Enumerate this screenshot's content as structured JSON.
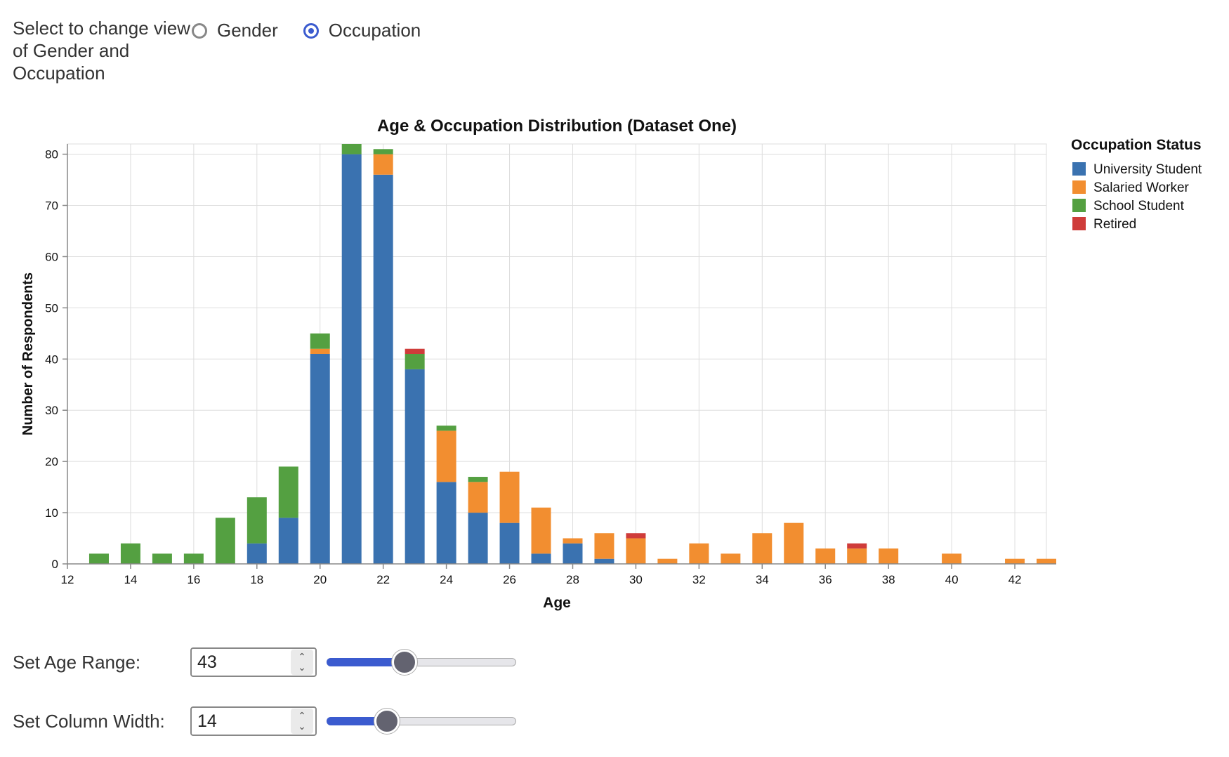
{
  "view_selector": {
    "label": "Select to change view of Gender and Occupation",
    "options": [
      {
        "label": "Gender",
        "selected": false
      },
      {
        "label": "Occupation",
        "selected": true
      }
    ]
  },
  "chart_data": {
    "type": "bar",
    "stacked": true,
    "title": "Age & Occupation Distribution (Dataset One)",
    "xlabel": "Age",
    "ylabel": "Number of Respondents",
    "xlim": [
      12,
      43
    ],
    "ylim": [
      0,
      82
    ],
    "x_ticks": [
      12,
      14,
      16,
      18,
      20,
      22,
      24,
      26,
      28,
      30,
      32,
      34,
      36,
      38,
      40,
      42
    ],
    "y_ticks": [
      0,
      10,
      20,
      30,
      40,
      50,
      60,
      70,
      80
    ],
    "grid": true,
    "legend": {
      "title": "Occupation Status",
      "position": "right"
    },
    "x": [
      13,
      14,
      15,
      16,
      17,
      18,
      19,
      20,
      21,
      22,
      23,
      24,
      25,
      26,
      27,
      28,
      29,
      30,
      31,
      32,
      33,
      34,
      35,
      36,
      37,
      38,
      39,
      40,
      41,
      42,
      43
    ],
    "series": [
      {
        "name": "University Student",
        "color": "#3a72b0",
        "values": [
          0,
          0,
          0,
          0,
          0,
          4,
          9,
          41,
          80,
          76,
          38,
          16,
          10,
          8,
          2,
          4,
          1,
          0,
          0,
          0,
          0,
          0,
          0,
          0,
          0,
          0,
          0,
          0,
          0,
          0,
          0
        ]
      },
      {
        "name": "Salaried Worker",
        "color": "#f28e30",
        "values": [
          0,
          0,
          0,
          0,
          0,
          0,
          0,
          1,
          0,
          4,
          0,
          10,
          6,
          10,
          9,
          1,
          5,
          5,
          1,
          4,
          2,
          6,
          8,
          3,
          3,
          3,
          0,
          2,
          0,
          1,
          1
        ]
      },
      {
        "name": "School Student",
        "color": "#54a041",
        "values": [
          2,
          4,
          2,
          2,
          9,
          9,
          10,
          3,
          2,
          1,
          3,
          1,
          1,
          0,
          0,
          0,
          0,
          0,
          0,
          0,
          0,
          0,
          0,
          0,
          0,
          0,
          0,
          0,
          0,
          0,
          0
        ]
      },
      {
        "name": "Retired",
        "color": "#cf3c3a",
        "values": [
          0,
          0,
          0,
          0,
          0,
          0,
          0,
          0,
          0,
          0,
          1,
          0,
          0,
          0,
          0,
          0,
          0,
          1,
          0,
          0,
          0,
          0,
          0,
          0,
          1,
          0,
          0,
          0,
          0,
          0,
          0
        ]
      }
    ]
  },
  "controls": {
    "age_range": {
      "label": "Set Age Range:",
      "value": "43",
      "fraction": 0.41
    },
    "column_width": {
      "label": "Set Column Width:",
      "value": "14",
      "fraction": 0.32
    }
  }
}
